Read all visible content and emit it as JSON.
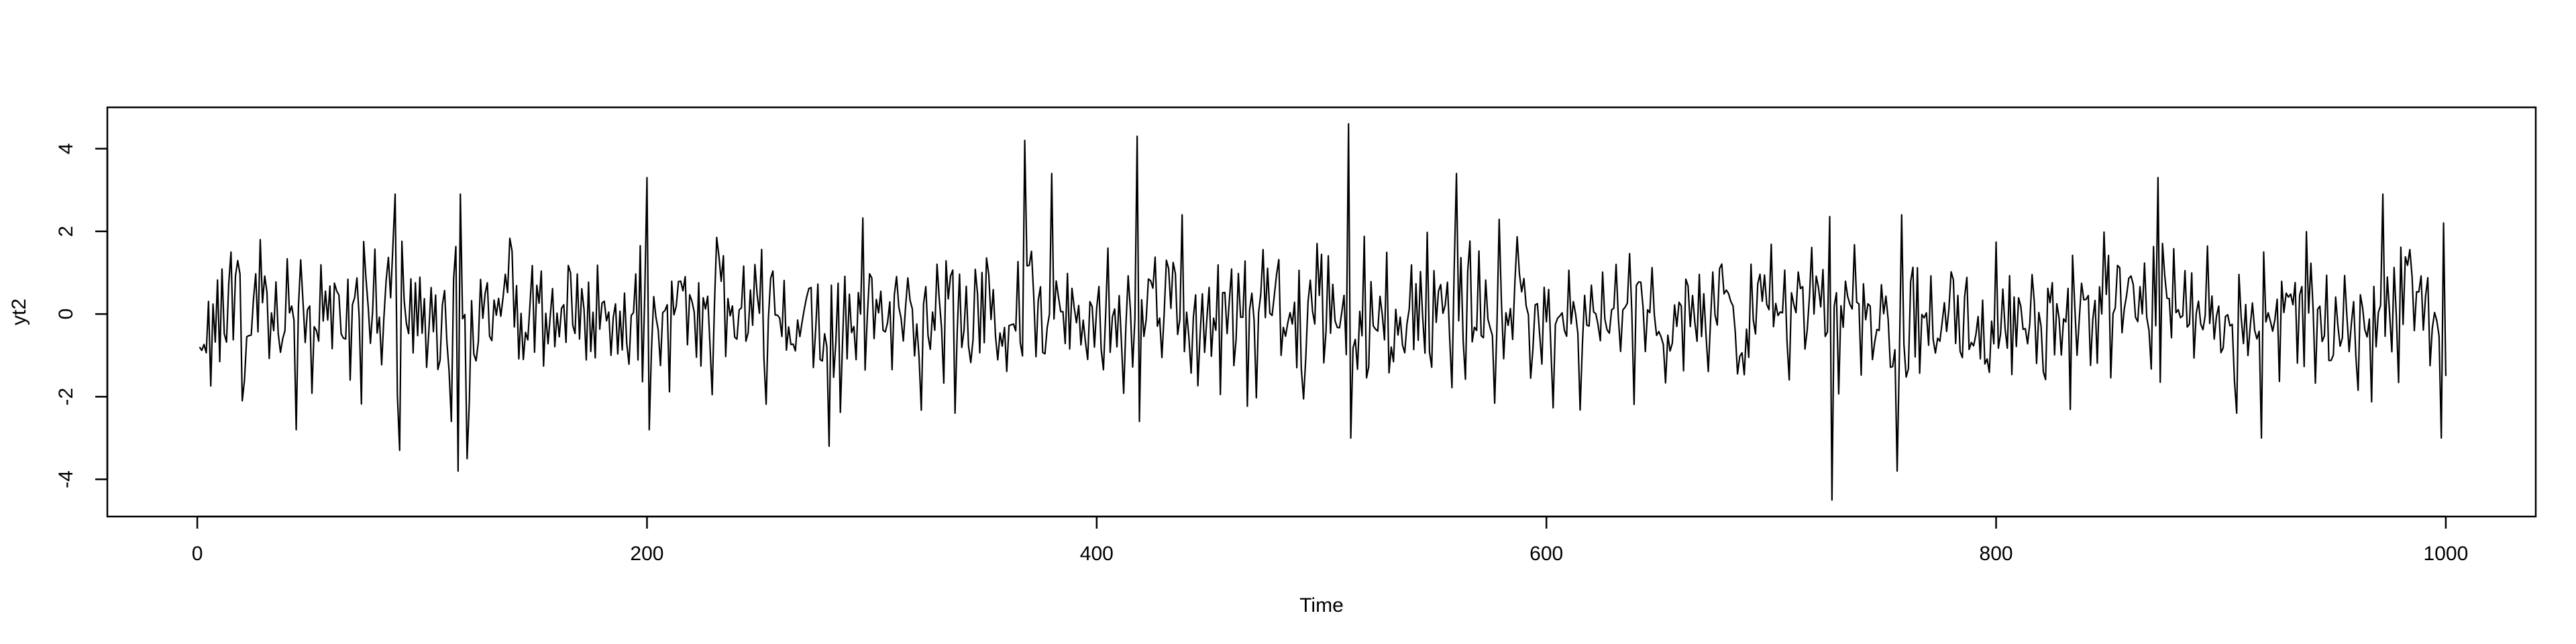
{
  "chart_data": {
    "type": "line",
    "xlabel": "Time",
    "ylabel": "yt2",
    "xlim": [
      -40,
      1040
    ],
    "ylim": [
      -4.9,
      5.0
    ],
    "x_ticks": [
      0,
      200,
      400,
      600,
      800,
      1000
    ],
    "x_tick_labels": [
      "0",
      "200",
      "400",
      "600",
      "800",
      "1000"
    ],
    "y_ticks": [
      -4,
      -2,
      0,
      2,
      4
    ],
    "y_tick_labels": [
      "-4",
      "-2",
      "0",
      "2",
      "4"
    ],
    "grid": false,
    "legend": "none",
    "series": [
      {
        "x_start": 1,
        "x_step": 1,
        "n": 1000,
        "noise_sd": 0.9,
        "extremes": [
          [
            1,
            -0.8
          ],
          [
            15,
            1.5
          ],
          [
            20,
            -2.1
          ],
          [
            28,
            1.8
          ],
          [
            44,
            -2.8
          ],
          [
            88,
            2.9
          ],
          [
            90,
            -3.3
          ],
          [
            113,
            -2.6
          ],
          [
            116,
            -3.8
          ],
          [
            117,
            2.9
          ],
          [
            120,
            -3.5
          ],
          [
            200,
            3.3
          ],
          [
            201,
            -2.8
          ],
          [
            281,
            -3.2
          ],
          [
            368,
            4.2
          ],
          [
            380,
            3.4
          ],
          [
            418,
            4.3
          ],
          [
            419,
            -2.6
          ],
          [
            512,
            4.6
          ],
          [
            513,
            -3.0
          ],
          [
            560,
            3.4
          ],
          [
            727,
            -4.5
          ],
          [
            756,
            -3.8
          ],
          [
            872,
            3.3
          ],
          [
            918,
            -3.0
          ],
          [
            972,
            2.9
          ],
          [
            998,
            -3.0
          ],
          [
            999,
            2.2
          ],
          [
            1000,
            -1.5
          ]
        ],
        "color": "#000000"
      }
    ]
  }
}
